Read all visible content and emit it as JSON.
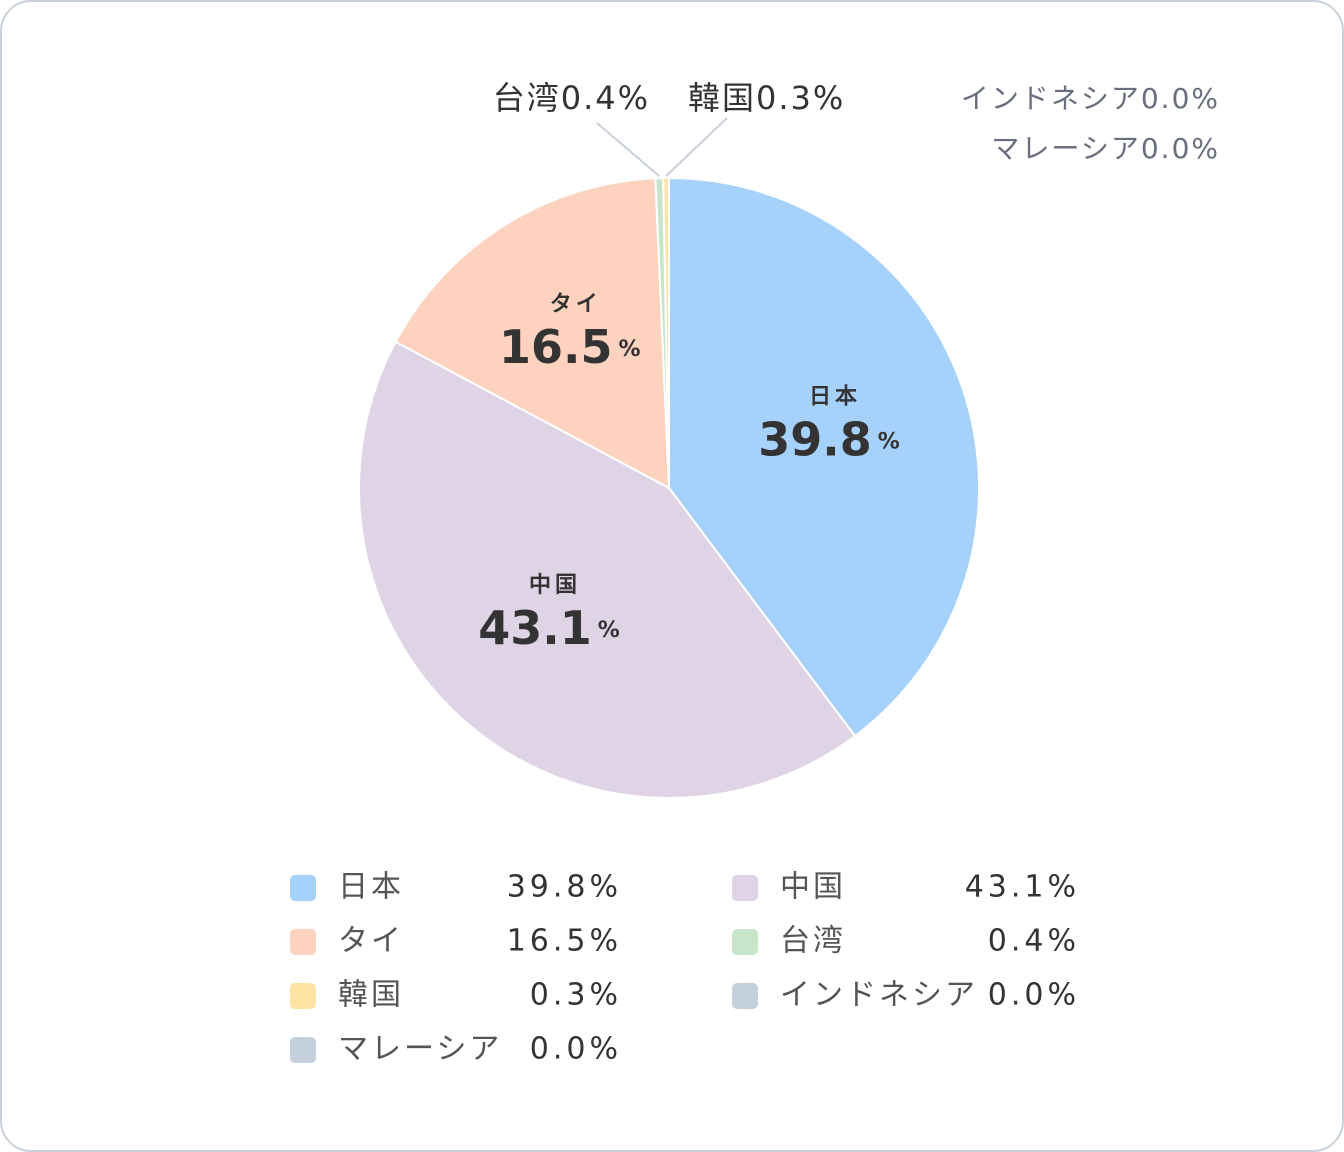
{
  "chart_data": {
    "type": "pie",
    "categories": [
      "日本",
      "中国",
      "タイ",
      "台湾",
      "韓国",
      "インドネシア",
      "マレーシア"
    ],
    "values": [
      39.8,
      43.1,
      16.5,
      0.4,
      0.3,
      0,
      0
    ],
    "value_labels": [
      "39.8%",
      "43.1%",
      "16.5%",
      "0.4%",
      "0.3%",
      "0.0%",
      "0.0%"
    ],
    "colors": [
      "#a5d1fa",
      "#dfd3e6",
      "#fdd3bf",
      "#c7e5c8",
      "#fde4a5",
      "#c5d0dd",
      "#c5d0dd"
    ],
    "unit": "%"
  }
}
